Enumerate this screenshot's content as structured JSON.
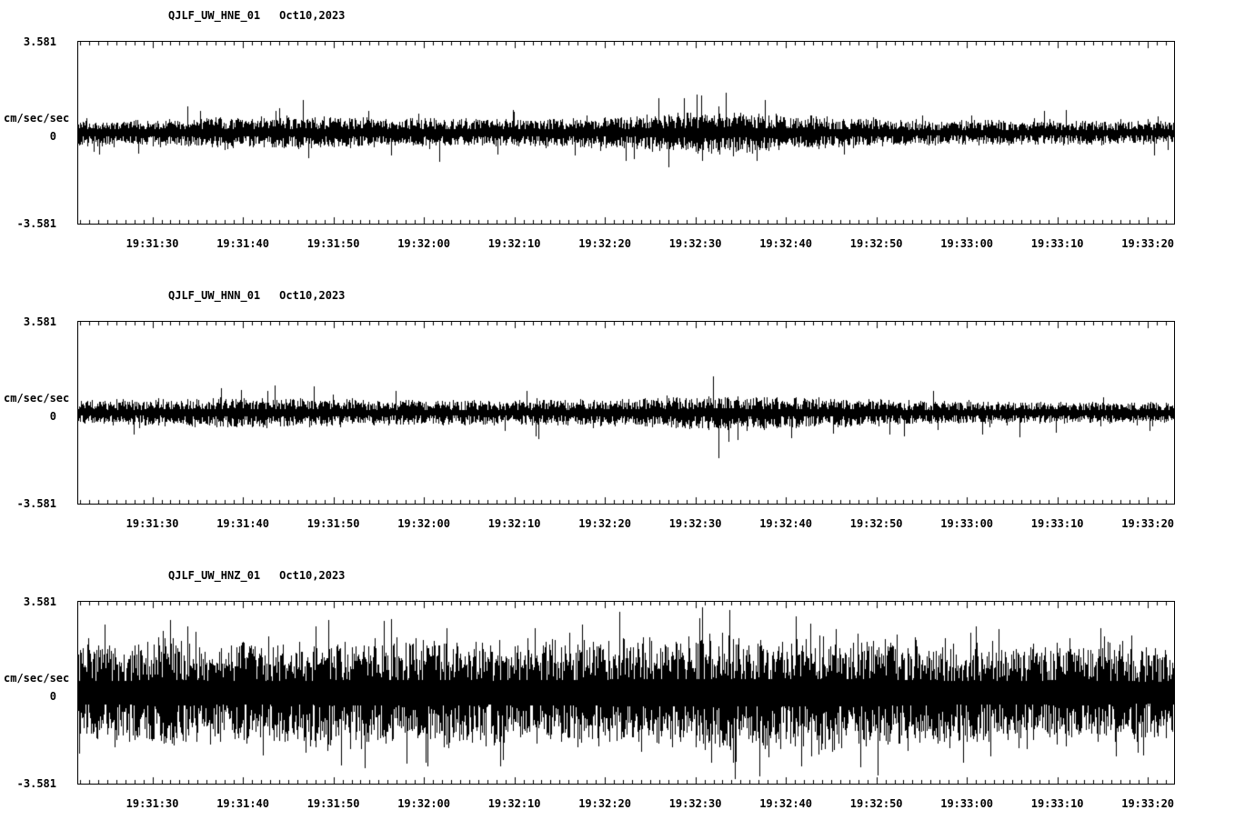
{
  "page": {
    "background": "#ffffff",
    "foreground": "#000000",
    "description": "Three-component strong-motion seismogram display"
  },
  "chart_data": [
    {
      "type": "line",
      "title": "QJLF_UW_HNE_01",
      "date_label": "Oct10,2023",
      "ylabel": "cm/sec/sec",
      "ylim": [
        -3.581,
        3.581
      ],
      "grid": false,
      "legend": false,
      "ytick_labels": {
        "max": "3.581",
        "zero": "0",
        "min": "-3.581"
      },
      "xtick_labels": [
        "19:31:30",
        "19:31:40",
        "19:31:50",
        "19:32:00",
        "19:32:10",
        "19:32:20",
        "19:32:30",
        "19:32:40",
        "19:32:50",
        "19:33:00",
        "19:33:10",
        "19:33:20"
      ],
      "axis": {
        "duration_s": 121,
        "first_label_offset_s": 8.2,
        "label_step_s": 10,
        "minor_tick_step_s": 1,
        "first_tick_offset_s": 0.2
      },
      "waveform": {
        "kind": "seismic-noise-envelope",
        "seed": 101,
        "spike_prob": 0.03,
        "spike_extra": 1.1,
        "envelope_amp": [
          0.45,
          0.42,
          0.45,
          0.48,
          0.5,
          0.55,
          0.48,
          0.45,
          0.45,
          0.42,
          0.45,
          0.48,
          0.52,
          0.6,
          0.68,
          0.6,
          0.52,
          0.48,
          0.42,
          0.38,
          0.4,
          0.36,
          0.38,
          0.36,
          0.38
        ],
        "events": [
          {
            "t": 0.1,
            "amp": 1.05
          },
          {
            "t": 0.205,
            "amp": 1.3
          },
          {
            "t": 0.21,
            "amp": -1.0
          },
          {
            "t": 0.33,
            "amp": -1.15
          },
          {
            "t": 0.53,
            "amp": 1.35
          },
          {
            "t": 0.565,
            "amp": 1.5
          },
          {
            "t": 0.57,
            "amp": -1.1
          }
        ]
      }
    },
    {
      "type": "line",
      "title": "QJLF_UW_HNN_01",
      "date_label": "Oct10,2023",
      "ylabel": "cm/sec/sec",
      "ylim": [
        -3.581,
        3.581
      ],
      "grid": false,
      "legend": false,
      "ytick_labels": {
        "max": "3.581",
        "zero": "0",
        "min": "-3.581"
      },
      "xtick_labels": [
        "19:31:30",
        "19:31:40",
        "19:31:50",
        "19:32:00",
        "19:32:10",
        "19:32:20",
        "19:32:30",
        "19:32:40",
        "19:32:50",
        "19:33:00",
        "19:33:10",
        "19:33:20"
      ],
      "axis": {
        "duration_s": 121,
        "first_label_offset_s": 8.2,
        "label_step_s": 10,
        "minor_tick_step_s": 1,
        "first_tick_offset_s": 0.2
      },
      "waveform": {
        "kind": "seismic-noise-envelope",
        "seed": 202,
        "spike_prob": 0.03,
        "spike_extra": 1.1,
        "envelope_amp": [
          0.38,
          0.4,
          0.42,
          0.45,
          0.48,
          0.45,
          0.42,
          0.4,
          0.4,
          0.38,
          0.4,
          0.42,
          0.45,
          0.5,
          0.55,
          0.52,
          0.48,
          0.45,
          0.4,
          0.38,
          0.36,
          0.34,
          0.33,
          0.32,
          0.32
        ],
        "events": [
          {
            "t": 0.13,
            "amp": 0.95
          },
          {
            "t": 0.215,
            "amp": 1.05
          },
          {
            "t": 0.42,
            "amp": -1.05
          },
          {
            "t": 0.58,
            "amp": 1.45
          },
          {
            "t": 0.585,
            "amp": -1.8
          },
          {
            "t": 0.86,
            "amp": -0.95
          }
        ]
      }
    },
    {
      "type": "line",
      "title": "QJLF_UW_HNZ_01",
      "date_label": "Oct10,2023",
      "ylabel": "cm/sec/sec",
      "ylim": [
        -3.581,
        3.581
      ],
      "grid": false,
      "legend": false,
      "ytick_labels": {
        "max": "3.581",
        "zero": "0",
        "min": "-3.581"
      },
      "xtick_labels": [
        "19:31:30",
        "19:31:40",
        "19:31:50",
        "19:32:00",
        "19:32:10",
        "19:32:20",
        "19:32:30",
        "19:32:40",
        "19:32:50",
        "19:33:00",
        "19:33:10",
        "19:33:20"
      ],
      "axis": {
        "duration_s": 121,
        "first_label_offset_s": 8.2,
        "label_step_s": 10,
        "minor_tick_step_s": 1,
        "first_tick_offset_s": 0.2
      },
      "waveform": {
        "kind": "seismic-noise-envelope",
        "seed": 303,
        "spike_prob": 0.05,
        "spike_extra": 0.55,
        "envelope_amp": [
          1.5,
          1.6,
          1.65,
          1.6,
          1.55,
          1.6,
          1.65,
          1.7,
          1.65,
          1.6,
          1.65,
          1.7,
          1.75,
          1.8,
          1.85,
          1.8,
          1.75,
          1.8,
          1.7,
          1.6,
          1.55,
          1.6,
          1.65,
          1.5,
          1.45
        ],
        "events": [
          {
            "t": 0.1,
            "amp": 2.6
          },
          {
            "t": 0.3,
            "amp": -2.8
          },
          {
            "t": 0.46,
            "amp": 2.7
          },
          {
            "t": 0.595,
            "amp": 3.25
          },
          {
            "t": 0.6,
            "amp": -3.4
          },
          {
            "t": 0.655,
            "amp": 3.0
          },
          {
            "t": 0.66,
            "amp": -2.9
          },
          {
            "t": 0.73,
            "amp": -3.25
          },
          {
            "t": 0.82,
            "amp": 2.6
          }
        ]
      }
    }
  ]
}
